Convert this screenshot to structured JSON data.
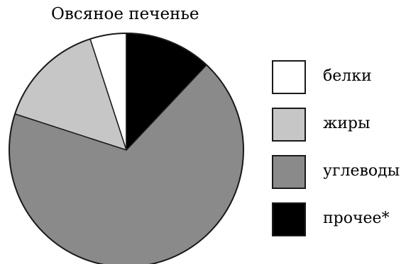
{
  "chart_data": {
    "type": "pie",
    "title": "Овсяное печенье",
    "categories": [
      "белки",
      "жиры",
      "углеводы",
      "прочее*"
    ],
    "values": [
      5,
      15,
      68,
      12
    ],
    "colors": [
      "#ffffff",
      "#c6c6c6",
      "#8a8a8a",
      "#000000"
    ],
    "start_angle": "12 o'clock",
    "direction": "counterclockwise from top: белки, жиры, углеводы, прочее*",
    "legend_position": "right"
  }
}
